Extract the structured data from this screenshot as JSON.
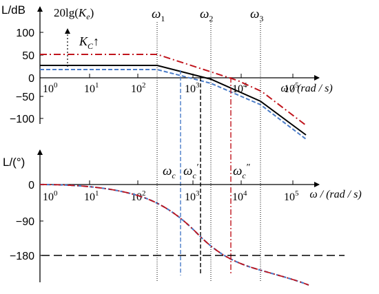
{
  "colors": {
    "axis": "#000000",
    "curve_base": "#000000",
    "curve_blue": "#4a7cc8",
    "curve_red": "#c0141c",
    "guide": "#000000"
  },
  "labels": {
    "mag_axis": "L/dB",
    "phase_axis": "L/(°)",
    "gain_prefix": "20lg(",
    "gain_sym": "K",
    "gain_sub": "e",
    "gain_suffix": ")",
    "kc_sym": "K",
    "kc_sub": "C",
    "kc_arrow": "↑",
    "omega": "ω",
    "w1_sub": "1",
    "w2_sub": "2",
    "w3_sub": "3",
    "wc_sub": "c",
    "wc1_prime": "′",
    "wc2_prime": "″",
    "freq_axis": "ω / (rad / s)"
  },
  "mag_ticks": [
    "100",
    "50",
    "0",
    "−50",
    "−100"
  ],
  "phase_ticks": [
    "0",
    "−90",
    "−180"
  ],
  "decade_bases": [
    "10",
    "10",
    "10",
    "10",
    "10",
    "10"
  ],
  "decade_exps": [
    "0",
    "1",
    "2",
    "3",
    "4",
    "5"
  ]
}
